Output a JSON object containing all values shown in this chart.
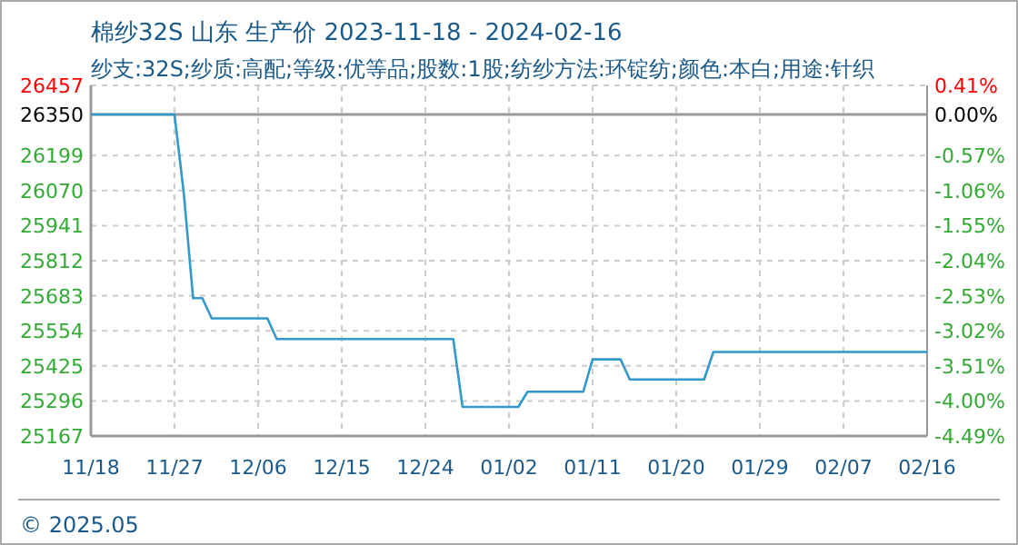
{
  "chart_data": {
    "type": "line",
    "title": "棉纱32S 山东 生产价 2023-11-18 - 2024-02-16",
    "subtitle": "纱支:32S;纱质:高配;等级:优等品;股数:1股;纺纱方法:环锭纺;颜色:本白;用途:针织",
    "x": [
      "2023-11-18",
      "2023-11-27",
      "2023-11-28",
      "2023-11-29",
      "2023-11-30",
      "2023-12-01",
      "2023-12-07",
      "2023-12-08",
      "2023-12-27",
      "2023-12-28",
      "2024-01-03",
      "2024-01-04",
      "2024-01-10",
      "2024-01-11",
      "2024-01-14",
      "2024-01-15",
      "2024-01-23",
      "2024-01-24",
      "2024-02-16"
    ],
    "series": [
      {
        "color": "#3399cc",
        "values": [
          26350,
          26350,
          26060,
          25674,
          25674,
          25600,
          25600,
          25524,
          25524,
          25274,
          25274,
          25330,
          25330,
          25449,
          25449,
          25375,
          25375,
          25476,
          25476
        ]
      }
    ],
    "xlim": [
      "2023-11-18",
      "2024-02-16"
    ],
    "xticks": [
      {
        "value": "2023-11-18",
        "label": "11/18"
      },
      {
        "value": "2023-11-27",
        "label": "11/27"
      },
      {
        "value": "2023-12-06",
        "label": "12/06"
      },
      {
        "value": "2023-12-15",
        "label": "12/15"
      },
      {
        "value": "2023-12-24",
        "label": "12/24"
      },
      {
        "value": "2024-01-02",
        "label": "01/02"
      },
      {
        "value": "2024-01-11",
        "label": "01/11"
      },
      {
        "value": "2024-01-20",
        "label": "01/20"
      },
      {
        "value": "2024-01-29",
        "label": "01/29"
      },
      {
        "value": "2024-02-07",
        "label": "02/07"
      },
      {
        "value": "2024-02-16",
        "label": "02/16"
      }
    ],
    "ylim": [
      25167,
      26457
    ],
    "yticks": [
      26457,
      26350,
      26199,
      26070,
      25941,
      25812,
      25683,
      25554,
      25425,
      25296,
      25167
    ],
    "y2lim": [
      -4.49,
      0.41
    ],
    "y2ticks": [
      {
        "value": 0.41,
        "label": "0.41%"
      },
      {
        "value": 0,
        "label": "0.00%"
      },
      {
        "value": -0.57,
        "label": "-0.57%"
      },
      {
        "value": -1.06,
        "label": "-1.06%"
      },
      {
        "value": -1.55,
        "label": "-1.55%"
      },
      {
        "value": -2.04,
        "label": "-2.04%"
      },
      {
        "value": -2.53,
        "label": "-2.53%"
      },
      {
        "value": -3.02,
        "label": "-3.02%"
      },
      {
        "value": -3.51,
        "label": "-3.51%"
      },
      {
        "value": -4.0,
        "label": "-4.00%"
      },
      {
        "value": -4.49,
        "label": "-4.49%"
      }
    ],
    "ref_lines": [
      {
        "axis": "y",
        "value": 26350,
        "color": "#999999"
      }
    ],
    "grid": true,
    "line_style": "solid",
    "annotations": [
      "© 2025.05"
    ]
  }
}
